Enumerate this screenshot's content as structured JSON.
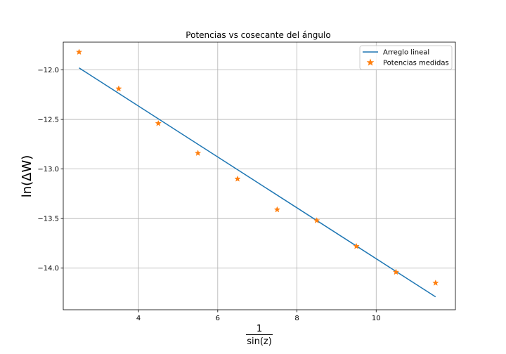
{
  "chart_data": {
    "type": "line",
    "title": "Potencias vs cosecante del ángulo",
    "xlabel": {
      "numerator": "1",
      "denominator": "sin(z)"
    },
    "ylabel": "ln(ΔW)",
    "xlim": [
      2.1,
      12.0
    ],
    "ylim": [
      -14.42,
      -11.72
    ],
    "xticks": [
      4,
      6,
      8,
      10
    ],
    "xtick_labels": [
      "4",
      "6",
      "8",
      "10"
    ],
    "yticks": [
      -12.0,
      -12.5,
      -13.0,
      -13.5,
      -14.0
    ],
    "ytick_labels": [
      "−12.0",
      "−12.5",
      "−13.0",
      "−13.5",
      "−14.0"
    ],
    "grid": true,
    "legend_position": "top-right",
    "series": [
      {
        "name": "Arreglo lineal",
        "kind": "line",
        "color": "#1f77b4",
        "x": [
          2.5,
          11.5
        ],
        "y": [
          -11.98,
          -14.29
        ]
      },
      {
        "name": "Potencias medidas",
        "kind": "scatter",
        "marker": "star",
        "color": "#ff7f0e",
        "x": [
          2.5,
          3.5,
          4.5,
          5.5,
          6.5,
          7.5,
          8.5,
          9.5,
          10.5,
          11.5
        ],
        "y": [
          -11.82,
          -12.19,
          -12.54,
          -12.84,
          -13.1,
          -13.41,
          -13.52,
          -13.78,
          -14.04,
          -14.15
        ]
      }
    ]
  }
}
